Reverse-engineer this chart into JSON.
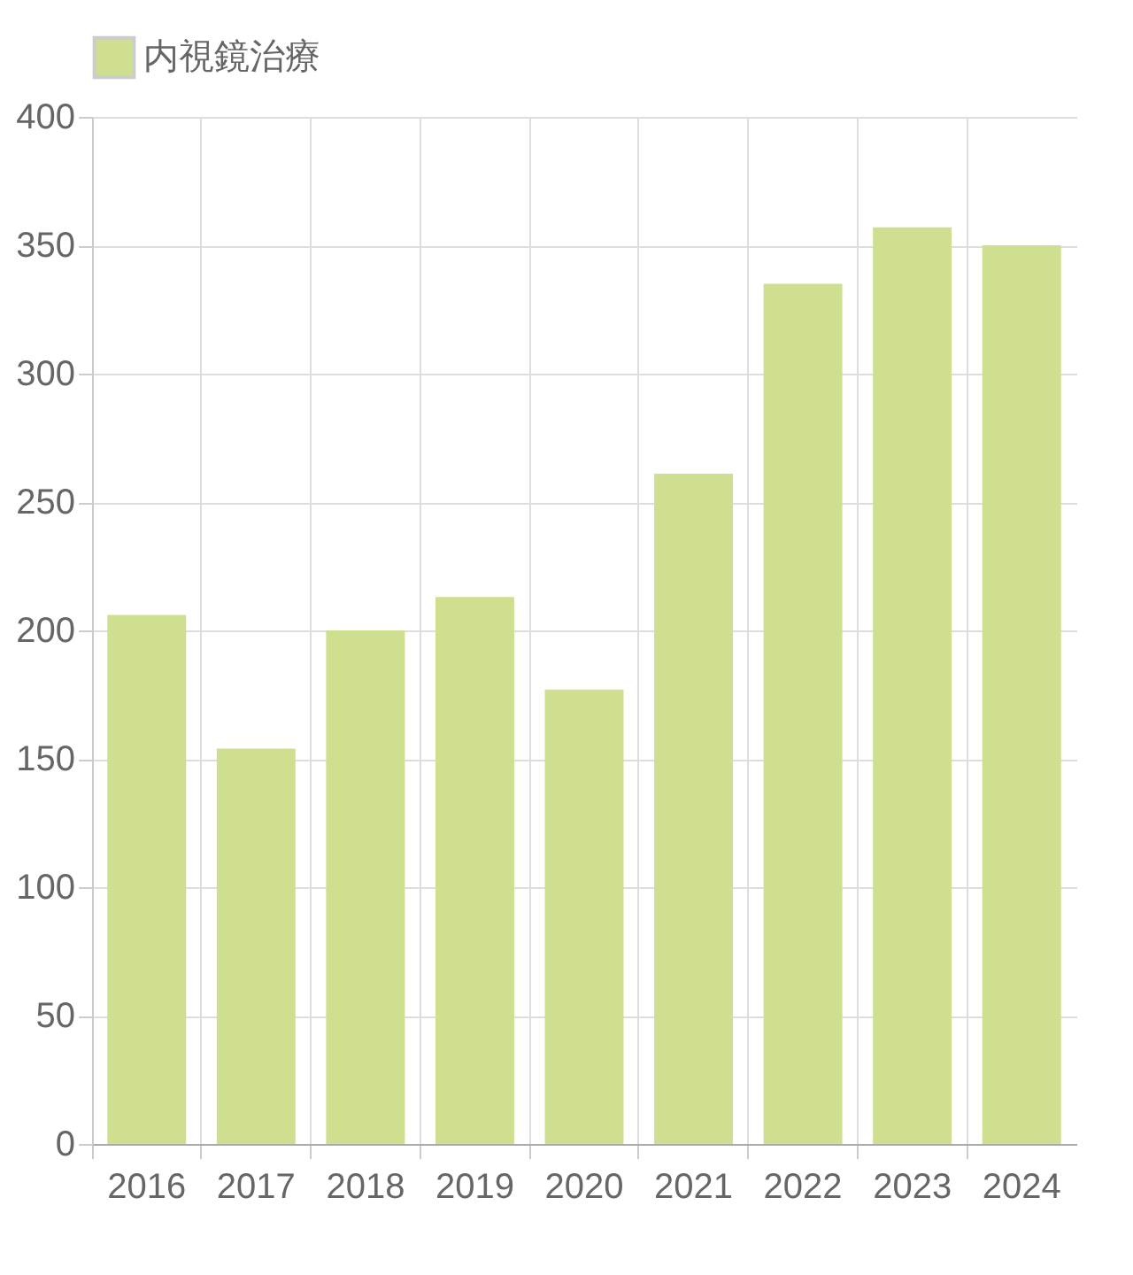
{
  "chart_data": {
    "type": "bar",
    "categories": [
      "2016",
      "2017",
      "2018",
      "2019",
      "2020",
      "2021",
      "2022",
      "2023",
      "2024"
    ],
    "series": [
      {
        "name": "内視鏡治療",
        "color": "#cfdf90",
        "values": [
          206,
          154,
          200,
          213,
          177,
          261,
          335,
          357,
          350
        ]
      }
    ],
    "ylim": [
      0,
      400
    ],
    "yticks": [
      0,
      50,
      100,
      150,
      200,
      250,
      300,
      350,
      400
    ],
    "grid": true,
    "legend": "top"
  }
}
